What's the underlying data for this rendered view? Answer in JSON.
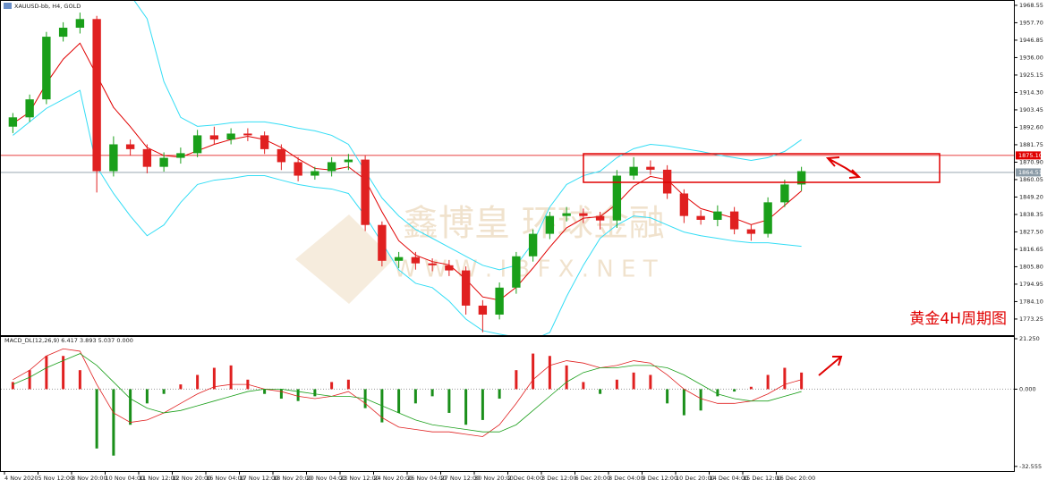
{
  "chart_data": {
    "type": "candlestick",
    "title": "XAUUSD-bb, H4, GOLD",
    "up_color": "#1a9f1a",
    "down_color": "#e02020",
    "open": [
      1893.0,
      1898.8,
      1910.0,
      1949.0,
      1954.6,
      1960.0,
      1865.3,
      1882.0,
      1879.0,
      1868.0,
      1873.6,
      1876.5,
      1887.6,
      1885.0,
      1888.7,
      1887.6,
      1879.0,
      1870.9,
      1862.5,
      1865.3,
      1870.9,
      1872.5,
      1831.8,
      1809.5,
      1811.8,
      1807.9,
      1806.7,
      1803.5,
      1781.6,
      1776.0,
      1792.8,
      1812.3,
      1826.3,
      1837.4,
      1839.1,
      1837.4,
      1834.6,
      1862.5,
      1868.0,
      1866.2,
      1851.4,
      1837.4,
      1835.0,
      1840.2,
      1829.1,
      1826.3,
      1845.9,
      1857.0
    ],
    "high": [
      1901.5,
      1913,
      1952,
      1958,
      1964,
      1962,
      1887,
      1885,
      1882,
      1877,
      1880,
      1891,
      1893,
      1892,
      1892,
      1890,
      1882,
      1874,
      1868,
      1874,
      1876,
      1875,
      1834,
      1815,
      1815,
      1811,
      1810,
      1806,
      1785,
      1796,
      1815,
      1829,
      1840,
      1843,
      1842,
      1840,
      1866,
      1874,
      1872,
      1869,
      1854,
      1841,
      1844,
      1843,
      1832,
      1849,
      1860,
      1868
    ],
    "low": [
      1889,
      1896,
      1907,
      1946,
      1951,
      1852,
      1862,
      1875,
      1864,
      1865,
      1870,
      1874,
      1882,
      1882,
      1884,
      1876,
      1866,
      1859,
      1860,
      1862,
      1866,
      1828,
      1806,
      1805,
      1804,
      1803,
      1800,
      1776,
      1765,
      1773,
      1789,
      1809,
      1823,
      1834,
      1833,
      1829,
      1830,
      1860,
      1863,
      1848,
      1833,
      1832,
      1831,
      1826,
      1822,
      1824,
      1843,
      1853
    ],
    "close": [
      1898.8,
      1910.0,
      1949.0,
      1954.6,
      1960.0,
      1865.3,
      1882.0,
      1879.0,
      1868.0,
      1873.6,
      1876.5,
      1887.6,
      1885.0,
      1888.7,
      1887.6,
      1879.0,
      1870.9,
      1862.5,
      1865.3,
      1870.9,
      1872.5,
      1831.8,
      1809.5,
      1811.8,
      1807.9,
      1806.7,
      1803.5,
      1781.6,
      1776.0,
      1792.8,
      1812.3,
      1826.3,
      1837.4,
      1839.1,
      1837.4,
      1834.6,
      1862.5,
      1868.0,
      1866.2,
      1851.4,
      1837.4,
      1835.0,
      1840.2,
      1829.1,
      1826.3,
      1845.9,
      1857.0,
      1865.3
    ],
    "bands": {
      "color": "#33ddf5",
      "upper": [
        1990,
        2000,
        2010,
        2015,
        2020,
        2010,
        1995,
        1975,
        1960.2,
        1921.1,
        1898.8,
        1893.2,
        1894,
        1895.4,
        1896,
        1896,
        1894.3,
        1892.1,
        1890.4,
        1887.6,
        1882,
        1865.3,
        1848.6,
        1837.4,
        1829,
        1823.5,
        1817.9,
        1812.3,
        1806.7,
        1803.9,
        1806.7,
        1820.7,
        1843,
        1857,
        1862.5,
        1865.3,
        1873.7,
        1879.3,
        1882,
        1881,
        1879.3,
        1877.6,
        1875.4,
        1873.7,
        1872,
        1873.7,
        1877.6,
        1884.9
      ],
      "lower": [
        1887.6,
        1896,
        1904.4,
        1910,
        1915.6,
        1868,
        1851.4,
        1837.4,
        1825.1,
        1831.8,
        1845.8,
        1857,
        1859.7,
        1860.8,
        1862.5,
        1862.5,
        1859.7,
        1857,
        1855.3,
        1854.2,
        1851.4,
        1837.4,
        1820.7,
        1803.9,
        1795.5,
        1792.8,
        1784.4,
        1773.2,
        1766,
        1763.8,
        1762.1,
        1760.4,
        1764.9,
        1787.2,
        1806.7,
        1823.5,
        1831.8,
        1837.4,
        1836.3,
        1831.8,
        1827.4,
        1825.1,
        1823.5,
        1821.8,
        1820.7,
        1820.7,
        1819.6,
        1818.5
      ]
    },
    "ma": {
      "color": "#e00000",
      "values": [
        1895,
        1902,
        1920,
        1935,
        1945,
        1925,
        1905,
        1893,
        1880,
        1875,
        1874,
        1878,
        1882,
        1885,
        1887,
        1885,
        1880,
        1873,
        1867,
        1866,
        1868,
        1860,
        1840,
        1822,
        1813,
        1809,
        1807,
        1798,
        1787,
        1785,
        1793,
        1805,
        1818,
        1830,
        1836,
        1837,
        1845,
        1856,
        1862,
        1860,
        1850,
        1842,
        1839,
        1836,
        1832,
        1835,
        1844,
        1853
      ]
    },
    "ylim": [
      1763.2,
      1971.3
    ],
    "yticks": [
      {
        "value": 1968.55,
        "label": "1968.55"
      },
      {
        "value": 1957.7,
        "label": "1957.70"
      },
      {
        "value": 1946.85,
        "label": "1946.85"
      },
      {
        "value": 1936.0,
        "label": "1936.00"
      },
      {
        "value": 1925.15,
        "label": "1925.15"
      },
      {
        "value": 1914.3,
        "label": "1914.30"
      },
      {
        "value": 1903.45,
        "label": "1903.45"
      },
      {
        "value": 1892.6,
        "label": "1892.60"
      },
      {
        "value": 1881.75,
        "label": "1881.75"
      },
      {
        "value": 1870.9,
        "label": "1870.90"
      },
      {
        "value": 1860.05,
        "label": "1860.05"
      },
      {
        "value": 1849.2,
        "label": "1849.20"
      },
      {
        "value": 1838.35,
        "label": "1838.35"
      },
      {
        "value": 1827.5,
        "label": "1827.50"
      },
      {
        "value": 1816.65,
        "label": "1816.65"
      },
      {
        "value": 1805.8,
        "label": "1805.80"
      },
      {
        "value": 1794.95,
        "label": "1794.95"
      },
      {
        "value": 1784.1,
        "label": "1784.10"
      },
      {
        "value": 1773.25,
        "label": "1773.25"
      }
    ],
    "levels": [
      {
        "value": 1875.1,
        "label": "1875.10",
        "color": "#e00000"
      },
      {
        "value": 1864.51,
        "label": "1864.51",
        "color": "#8a9aa6"
      }
    ],
    "time_labels": [
      "4 Nov 2020",
      "5 Nov 12:00",
      "8 Nov 20:00",
      "10 Nov 04:00",
      "11 Nov 12:00",
      "12 Nov 20:00",
      "16 Nov 04:00",
      "17 Nov 12:00",
      "18 Nov 20:00",
      "20 Nov 04:00",
      "23 Nov 12:00",
      "24 Nov 20:00",
      "26 Nov 04:00",
      "27 Nov 12:00",
      "30 Nov 20:00",
      "2 Dec 04:00",
      "3 Dec 12:00",
      "6 Dec 20:00",
      "8 Dec 04:00",
      "9 Dec 12:00",
      "10 Dec 20:00",
      "14 Dec 04:00",
      "15 Dec 12:00",
      "16 Dec 20:00"
    ],
    "annotation": "黄金4H周期图",
    "watermark": [
      "鑫博皇 环球金融",
      "W W W . I B F X . N E T"
    ],
    "macd": {
      "label": "MACD_DL(12,26,9) 6.417 3.893 5.037 0.000",
      "histogram": [
        3,
        8,
        14,
        14,
        8,
        -25,
        -28,
        -15,
        -6,
        -2,
        2,
        6,
        9,
        10,
        4,
        -2,
        -4,
        -5,
        -3,
        3,
        4,
        -8,
        -14,
        -10,
        -6,
        -3,
        -10,
        -15,
        -13,
        -4,
        8,
        15,
        14,
        10,
        3,
        -2,
        4,
        7,
        6,
        -6,
        -11,
        -9,
        -3,
        -1,
        1,
        6,
        9,
        7
      ],
      "line": [
        4,
        8,
        14,
        17,
        16,
        2,
        -10,
        -14,
        -13,
        -10,
        -6,
        -2,
        1,
        2,
        2,
        0,
        -1,
        -3,
        -4,
        -3,
        -1,
        -6,
        -12,
        -16,
        -17,
        -18,
        -18,
        -19,
        -20,
        -15,
        -6,
        4,
        10,
        12,
        11,
        9,
        10,
        12,
        11,
        6,
        0,
        -4,
        -6,
        -6,
        -5,
        -2,
        2,
        4
      ],
      "signal": [
        2,
        5,
        9,
        12,
        15,
        10,
        3,
        -4,
        -8,
        -10,
        -9,
        -7,
        -5,
        -3,
        -1,
        0,
        0,
        -1,
        -2,
        -3,
        -3,
        -4,
        -7,
        -10,
        -13,
        -15,
        -16,
        -17,
        -18,
        -18,
        -15,
        -9,
        -3,
        3,
        7,
        9,
        9,
        10,
        10,
        9,
        6,
        2,
        -2,
        -4,
        -5,
        -5,
        -3,
        -1
      ],
      "up_color": "#e02020",
      "down_color": "#1a8f1a",
      "line_color": "#e02020",
      "signal_color": "#1a9f1a",
      "ylim": [
        -34.5,
        22.0
      ],
      "yticks": [
        {
          "value": 21.25,
          "label": "21.250"
        },
        {
          "value": 0,
          "label": "0.000"
        },
        {
          "value": -32.555,
          "label": "-32.555"
        }
      ]
    }
  }
}
